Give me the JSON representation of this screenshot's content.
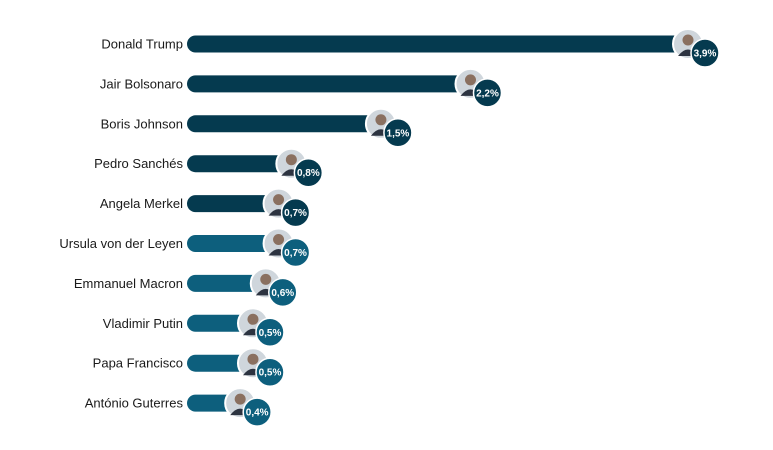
{
  "chart_data": {
    "type": "bar",
    "orientation": "horizontal",
    "categories": [
      "Donald Trump",
      "Jair Bolsonaro",
      "Boris Johnson",
      "Pedro Sanchés",
      "Angela Merkel",
      "Ursula von der Leyen",
      "Emmanuel Macron",
      "Vladimir Putin",
      "Papa Francisco",
      "António Guterres"
    ],
    "values": [
      3.9,
      2.2,
      1.5,
      0.8,
      0.7,
      0.7,
      0.6,
      0.5,
      0.5,
      0.4
    ],
    "value_labels": [
      "3,9%",
      "2,2%",
      "1,5%",
      "0,8%",
      "0,7%",
      "0,7%",
      "0,6%",
      "0,5%",
      "0,5%",
      "0,4%"
    ],
    "xlim": [
      0,
      3.9
    ],
    "grid": false,
    "legend": "none",
    "title": "",
    "xlabel": "",
    "ylabel": ""
  },
  "colors": {
    "dark": "#053a4f",
    "teal": "#0d5f7d",
    "label": "#1a1a1a"
  },
  "icons": [
    "portrait-icon",
    "portrait-icon",
    "portrait-icon",
    "portrait-icon",
    "portrait-icon",
    "portrait-icon",
    "portrait-icon",
    "portrait-icon",
    "portrait-icon",
    "portrait-icon"
  ]
}
